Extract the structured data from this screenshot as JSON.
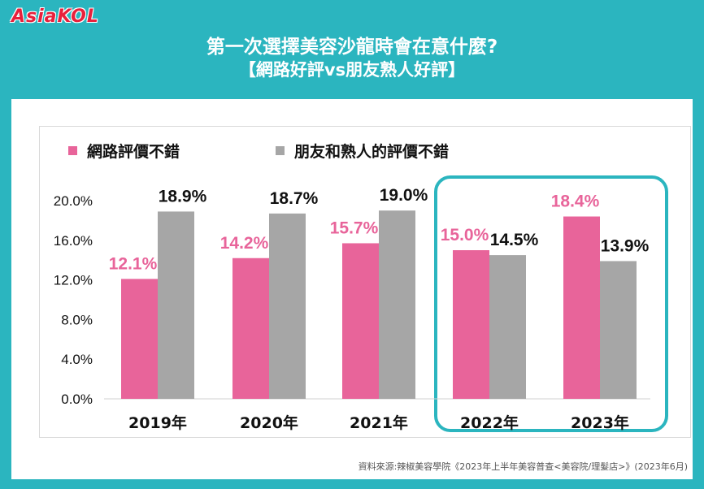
{
  "logo": "AsiaKOL",
  "title": "第一次選擇美容沙龍時會在意什麼?",
  "subtitle": "【網路好評vs朋友熟人好評】",
  "source": "資料來源:辣椒美容學院《2023年上半年美容普查<美容院/理髮店>》(2023年6月)",
  "colors": {
    "frame": "#2bb5bf",
    "series1": "#e8649a",
    "series2": "#a6a6a6",
    "highlight": "#2bb5bf",
    "label1": "#e8649a",
    "label2": "#111111"
  },
  "chart_data": {
    "type": "bar",
    "title": "第一次選擇美容沙龍時會在意什麼?",
    "subtitle": "【網路好評vs朋友熟人好評】",
    "categories": [
      "2019年",
      "2020年",
      "2021年",
      "2022年",
      "2023年"
    ],
    "series": [
      {
        "name": "網路評價不錯",
        "values": [
          12.1,
          14.2,
          15.7,
          15.0,
          18.4
        ],
        "labels": [
          "12.1%",
          "14.2%",
          "15.7%",
          "15.0%",
          "18.4%"
        ]
      },
      {
        "name": "朋友和熟人的評價不錯",
        "values": [
          18.9,
          18.7,
          19.0,
          14.5,
          13.9
        ],
        "labels": [
          "18.9%",
          "18.7%",
          "19.0%",
          "14.5%",
          "13.9%"
        ]
      }
    ],
    "yticks": [
      "0.0%",
      "4.0%",
      "8.0%",
      "12.0%",
      "16.0%",
      "20.0%"
    ],
    "ylim": [
      0,
      20
    ],
    "grid": false,
    "legend_position": "top-left",
    "highlighted_categories": [
      "2022年",
      "2023年"
    ]
  }
}
